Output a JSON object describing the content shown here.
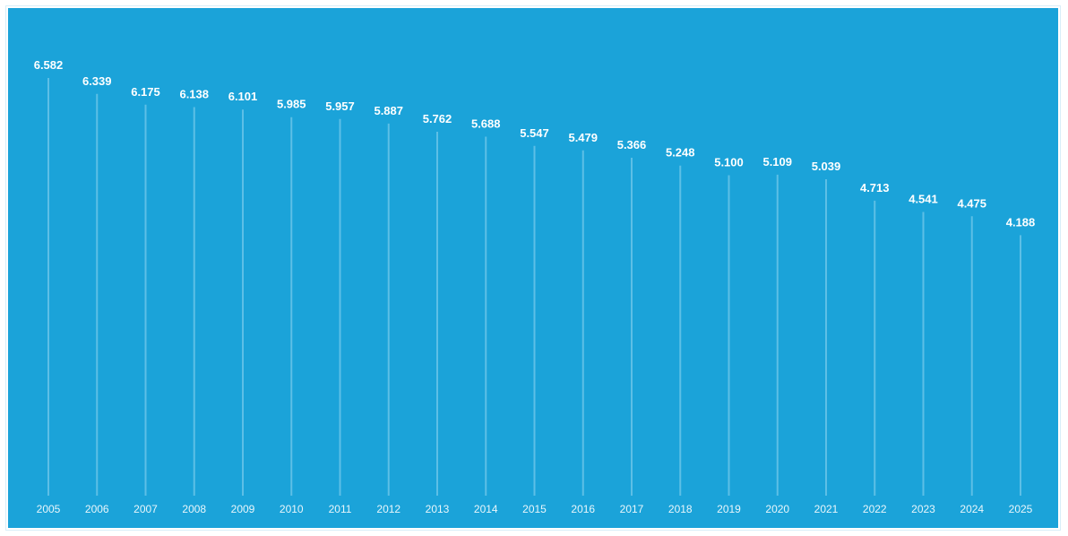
{
  "colors": {
    "background": "#1ba3d9",
    "stem": "#5dbfe6",
    "text": "#ffffff"
  },
  "chart_data": {
    "type": "lollipop",
    "title": "",
    "xlabel": "",
    "ylabel": "",
    "ylim": [
      0,
      6.582
    ],
    "grid": false,
    "legend": "none",
    "categories": [
      "2005",
      "2006",
      "2007",
      "2008",
      "2009",
      "2010",
      "2011",
      "2012",
      "2013",
      "2014",
      "2015",
      "2016",
      "2017",
      "2018",
      "2019",
      "2020",
      "2021",
      "2022",
      "2023",
      "2024",
      "2025"
    ],
    "values": [
      6.582,
      6.339,
      6.175,
      6.138,
      6.101,
      5.985,
      5.957,
      5.887,
      5.762,
      5.688,
      5.547,
      5.479,
      5.366,
      5.248,
      5.1,
      5.109,
      5.039,
      4.713,
      4.541,
      4.475,
      4.188
    ],
    "labels": [
      "6.582",
      "6.339",
      "6.175",
      "6.138",
      "6.101",
      "5.985",
      "5.957",
      "5.887",
      "5.762",
      "5.688",
      "5.547",
      "5.479",
      "5.366",
      "5.248",
      "5.100",
      "5.109",
      "5.039",
      "4.713",
      "4.541",
      "4.475",
      "4.188"
    ]
  }
}
